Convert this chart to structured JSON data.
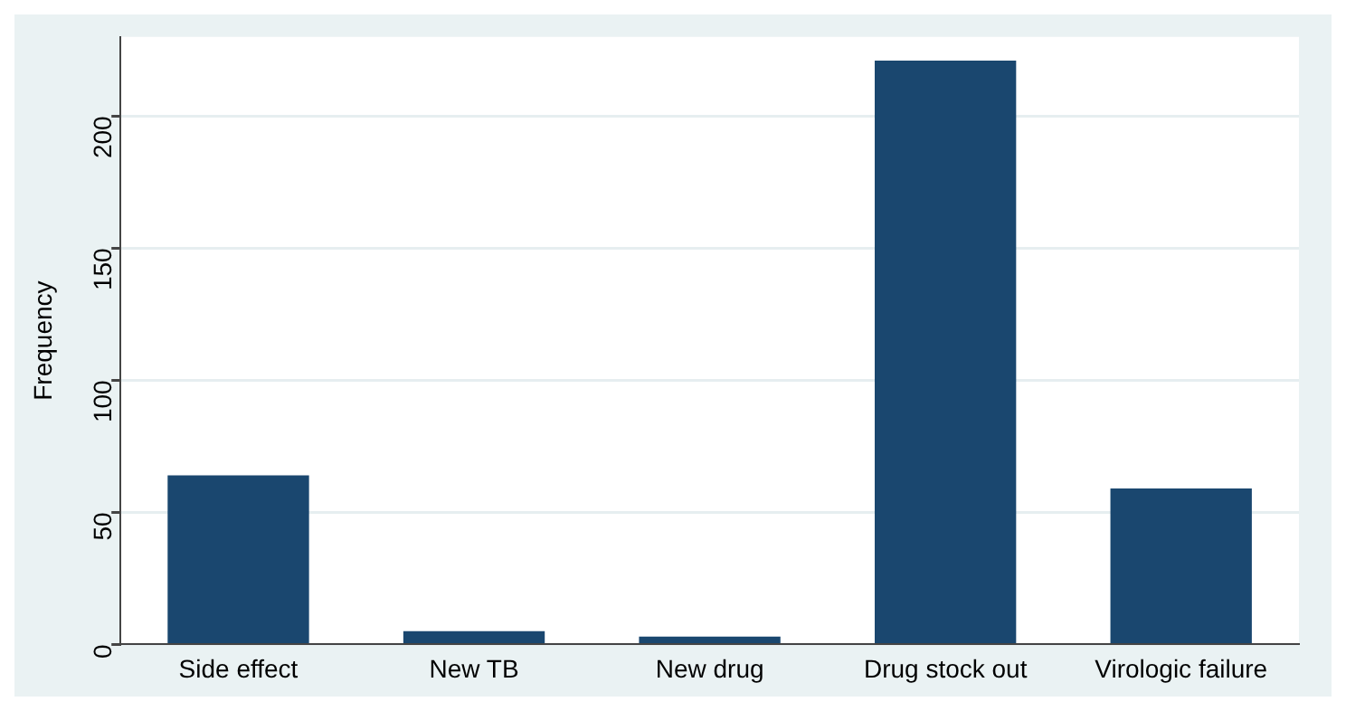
{
  "chart_data": {
    "type": "bar",
    "ylabel": "Frequency",
    "categories": [
      "Side effect",
      "New TB",
      "New drug",
      "Drug stock out",
      "Virologic failure"
    ],
    "values": [
      64,
      5,
      3,
      221,
      59
    ],
    "color": "#1a476f",
    "ylim": [
      0,
      230
    ],
    "yticks": [
      0,
      50,
      100,
      150,
      200
    ],
    "grid": "y",
    "legend": false
  }
}
